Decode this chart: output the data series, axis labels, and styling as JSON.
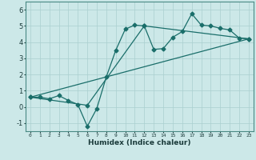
{
  "xlabel": "Humidex (Indice chaleur)",
  "bg_color": "#cce8e8",
  "line_color": "#1a6e6a",
  "grid_color": "#aacfcf",
  "xlim": [
    -0.5,
    23.5
  ],
  "ylim": [
    -1.5,
    6.5
  ],
  "yticks": [
    -1,
    0,
    1,
    2,
    3,
    4,
    5,
    6
  ],
  "xticks": [
    0,
    1,
    2,
    3,
    4,
    5,
    6,
    7,
    8,
    9,
    10,
    11,
    12,
    13,
    14,
    15,
    16,
    17,
    18,
    19,
    20,
    21,
    22,
    23
  ],
  "line1_x": [
    0,
    1,
    2,
    3,
    4,
    5,
    6,
    7,
    8,
    9,
    10,
    11,
    12,
    13,
    14,
    15,
    16,
    17,
    18,
    19,
    20,
    21,
    22,
    23
  ],
  "line1_y": [
    0.6,
    0.6,
    0.5,
    0.7,
    0.4,
    0.15,
    -1.2,
    -0.1,
    1.85,
    3.5,
    4.8,
    5.05,
    5.0,
    3.55,
    3.6,
    4.3,
    4.65,
    5.75,
    5.05,
    5.0,
    4.85,
    4.75,
    4.25,
    4.2
  ],
  "line2_x": [
    0,
    23
  ],
  "line2_y": [
    0.6,
    4.2
  ],
  "line3_x": [
    0,
    6,
    12,
    23
  ],
  "line3_y": [
    0.6,
    0.1,
    5.0,
    4.2
  ],
  "markersize": 2.5,
  "linewidth": 0.9
}
